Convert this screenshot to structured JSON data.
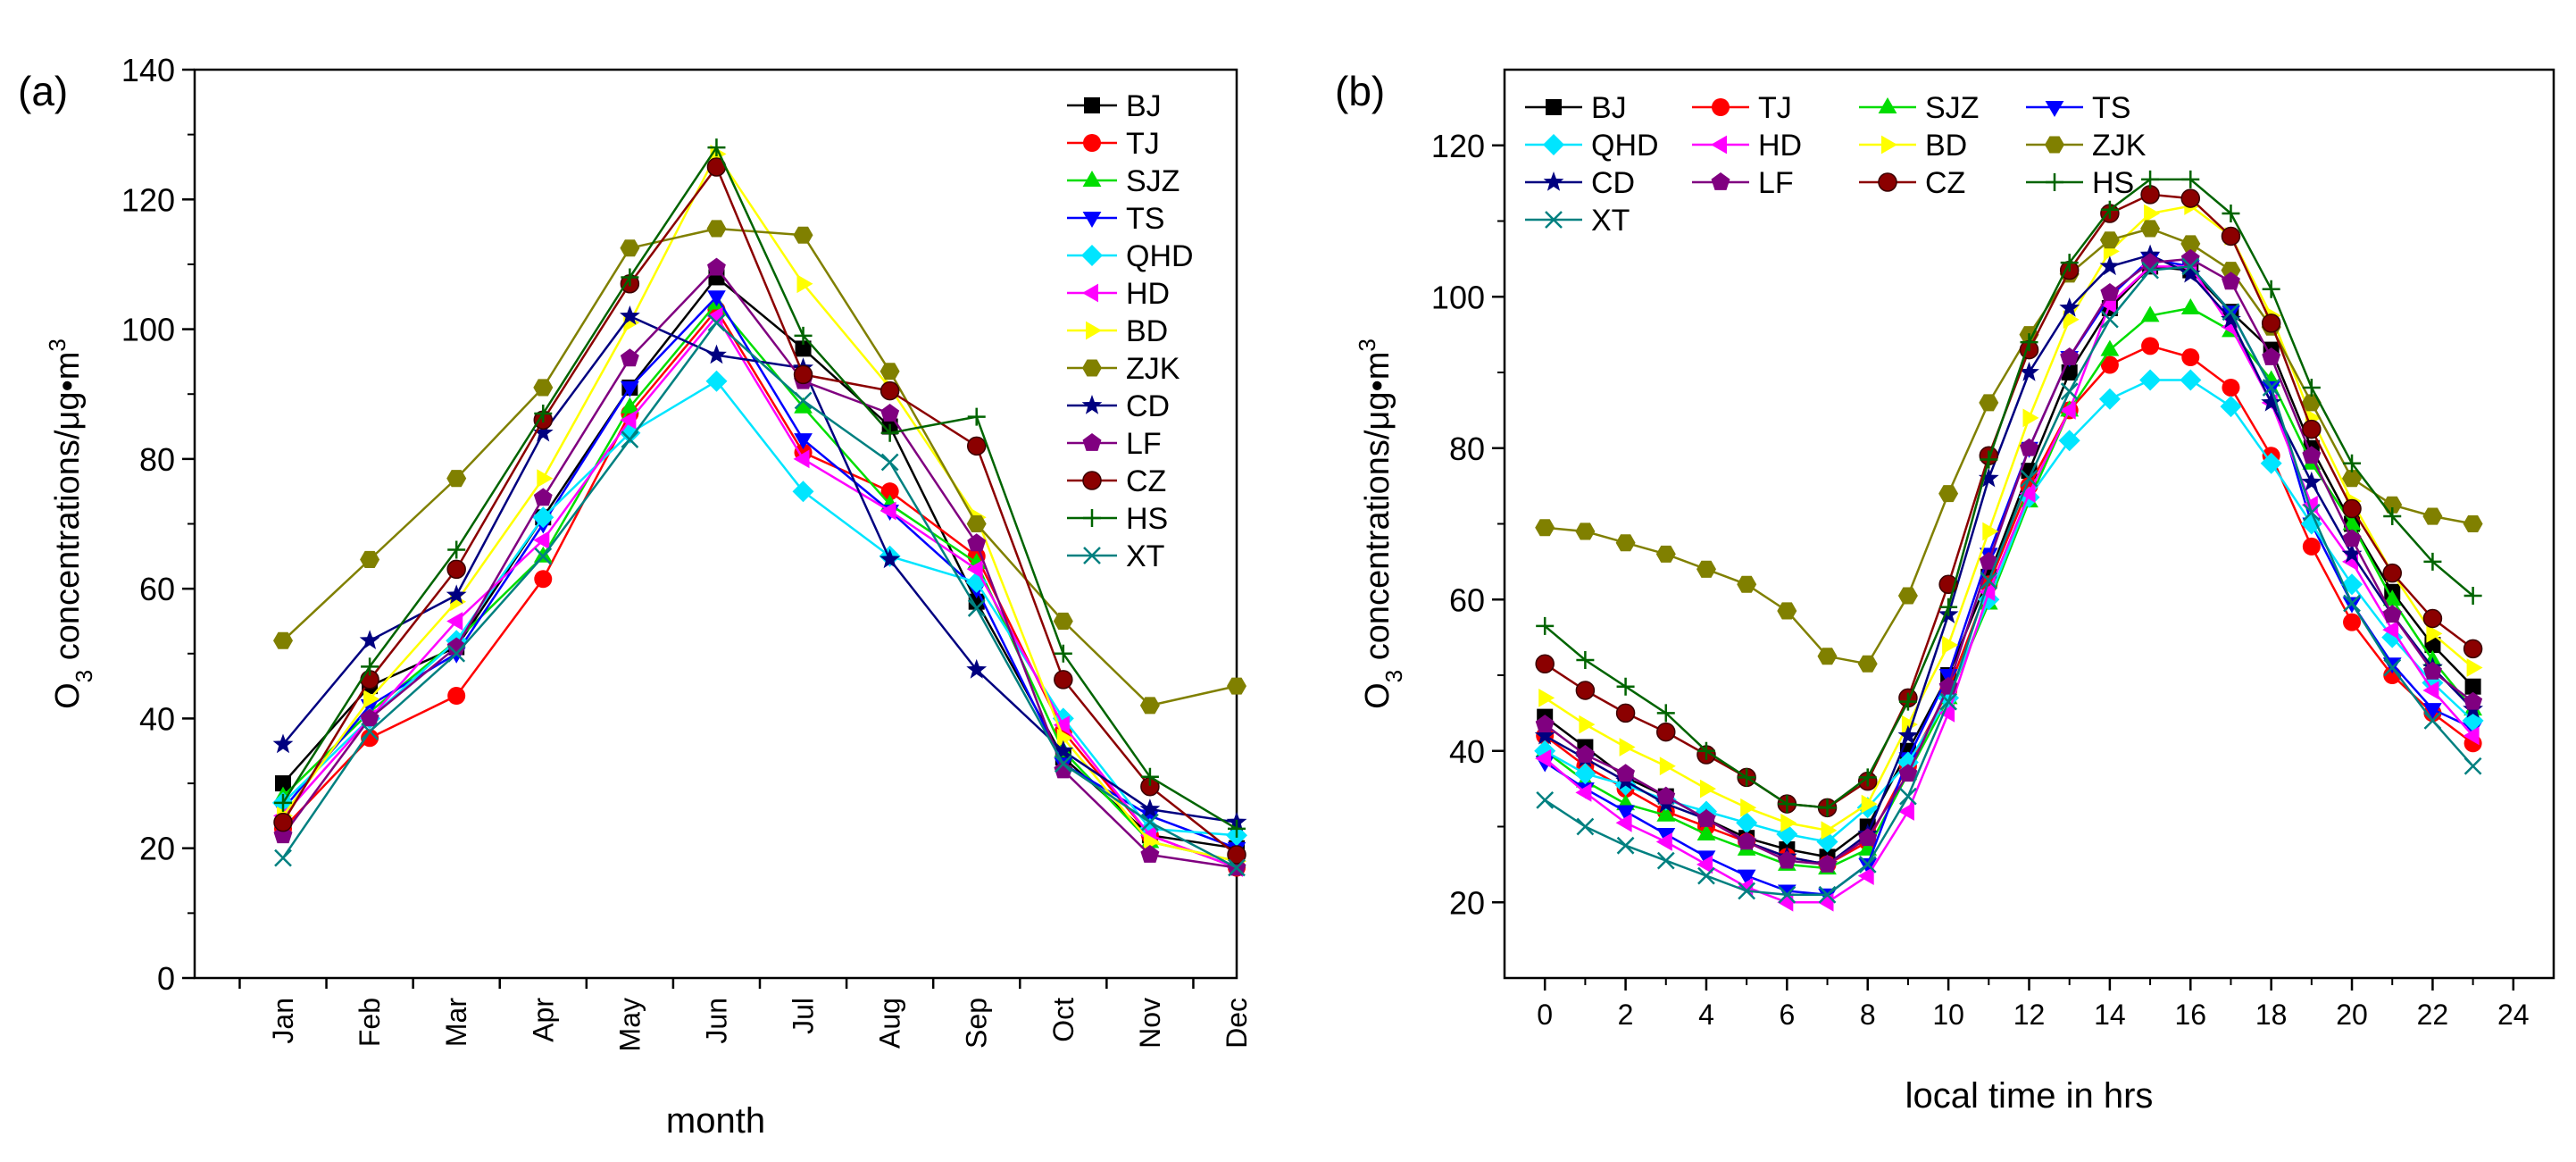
{
  "panel_labels": [
    "(a)",
    "(b)"
  ],
  "chart_data": [
    {
      "type": "line",
      "panel": "(a)",
      "title": "",
      "xlabel": "month",
      "ylabel": "O3 concentrations/μg•m3",
      "ylabel_parts": {
        "O": "O",
        "sub": "3",
        "rest": " concentrations/μg•m",
        "sup": "3"
      },
      "categories": [
        "Jan",
        "Feb",
        "Mar",
        "Apr",
        "May",
        "Jun",
        "Jul",
        "Aug",
        "Sep",
        "Oct",
        "Nov",
        "Dec"
      ],
      "ylim": [
        0,
        140
      ],
      "y_ticks": [
        0,
        20,
        40,
        60,
        80,
        100,
        120,
        140
      ],
      "y_tick_labels": [
        "0",
        "20",
        "40",
        "60",
        "80",
        "100",
        "120",
        "140"
      ],
      "legend_position": "top-right",
      "series": [
        {
          "name": "BJ",
          "color": "#000000",
          "marker": "square",
          "values": [
            30,
            45,
            51,
            71,
            91,
            108,
            97,
            85,
            58,
            34,
            22,
            20
          ]
        },
        {
          "name": "TJ",
          "color": "#ff0000",
          "marker": "circle",
          "values": [
            23,
            37,
            43.5,
            61.5,
            87,
            103,
            81,
            75,
            65,
            38,
            22,
            17
          ]
        },
        {
          "name": "SJZ",
          "color": "#00dd00",
          "marker": "triangle-up",
          "values": [
            28,
            41,
            52,
            65,
            88,
            104,
            88,
            73,
            64,
            35,
            21,
            18
          ]
        },
        {
          "name": "TS",
          "color": "#0000ff",
          "marker": "triangle-down",
          "values": [
            26,
            42,
            50,
            70,
            91,
            105,
            83,
            72,
            60,
            33,
            25,
            20
          ]
        },
        {
          "name": "QHD",
          "color": "#00e5ff",
          "marker": "diamond",
          "values": [
            27,
            40,
            52,
            71,
            84,
            92,
            75,
            65,
            61,
            40,
            23,
            22
          ]
        },
        {
          "name": "HD",
          "color": "#ff00ff",
          "marker": "triangle-left",
          "values": [
            25,
            40,
            55,
            67.5,
            86,
            102,
            80,
            72,
            63,
            39,
            22,
            17
          ]
        },
        {
          "name": "BD",
          "color": "#ffff00",
          "marker": "triangle-right",
          "values": [
            25,
            43,
            58,
            77,
            101,
            127,
            107,
            91,
            71,
            37,
            21,
            18
          ]
        },
        {
          "name": "ZJK",
          "color": "#808000",
          "marker": "hexagon",
          "values": [
            52,
            64.5,
            77,
            91,
            112.5,
            115.5,
            114.5,
            93.5,
            70,
            55,
            42,
            45
          ]
        },
        {
          "name": "CD",
          "color": "#000080",
          "marker": "star",
          "values": [
            36,
            52,
            59,
            84,
            102,
            96,
            94,
            64.5,
            47.5,
            35,
            26,
            24
          ]
        },
        {
          "name": "LF",
          "color": "#800080",
          "marker": "pentagon",
          "values": [
            22,
            40,
            51,
            74,
            95.5,
            109.5,
            92,
            87,
            67,
            32,
            19,
            17
          ]
        },
        {
          "name": "CZ",
          "color": "#8b0000",
          "marker": "sphere",
          "values": [
            24,
            46,
            63,
            86,
            107,
            125,
            93,
            90.5,
            82,
            46,
            29.5,
            19
          ]
        },
        {
          "name": "HS",
          "color": "#006400",
          "marker": "plus",
          "values": [
            27,
            48,
            66,
            87,
            108,
            128,
            99,
            84,
            86.5,
            50,
            31,
            23
          ]
        },
        {
          "name": "XT",
          "color": "#008080",
          "marker": "x",
          "values": [
            18.5,
            38,
            50,
            65,
            83,
            101,
            89,
            79.5,
            57,
            33,
            24,
            17
          ]
        }
      ]
    },
    {
      "type": "line",
      "panel": "(b)",
      "title": "",
      "xlabel": "local time in hrs",
      "ylabel": "O3 concentrations/μg•m3",
      "ylabel_parts": {
        "O": "O",
        "sub": "3",
        "rest": " concentrations/μg•m",
        "sup": "3"
      },
      "x": [
        0,
        1,
        2,
        3,
        4,
        5,
        6,
        7,
        8,
        9,
        10,
        11,
        12,
        13,
        14,
        15,
        16,
        17,
        18,
        19,
        20,
        21,
        22,
        23
      ],
      "xlim": [
        -1,
        25
      ],
      "x_ticks": [
        0,
        2,
        4,
        6,
        8,
        10,
        12,
        14,
        16,
        18,
        20,
        22,
        24
      ],
      "x_tick_labels": [
        "0",
        "2",
        "4",
        "6",
        "8",
        "10",
        "12",
        "14",
        "16",
        "18",
        "20",
        "22",
        "24"
      ],
      "ylim": [
        10,
        130
      ],
      "y_ticks": [
        20,
        40,
        60,
        80,
        100,
        120
      ],
      "y_tick_labels": [
        "20",
        "40",
        "60",
        "80",
        "100",
        "120"
      ],
      "legend_position": "top-left",
      "series": [
        {
          "name": "BJ",
          "color": "#000000",
          "marker": "square",
          "values": [
            44.5,
            40.5,
            36.5,
            34,
            31,
            28.5,
            27,
            26,
            30,
            40,
            50,
            63,
            77,
            90,
            98.5,
            104,
            103.5,
            98,
            93,
            80,
            70,
            61,
            54,
            48.5
          ]
        },
        {
          "name": "TJ",
          "color": "#ff0000",
          "marker": "circle",
          "values": [
            42,
            38,
            35,
            32,
            30,
            28,
            26,
            25,
            28,
            38,
            48,
            62,
            75,
            85,
            91,
            93.5,
            92,
            88,
            79,
            67,
            57,
            50,
            45,
            41
          ]
        },
        {
          "name": "SJZ",
          "color": "#00dd00",
          "marker": "triangle-up",
          "values": [
            40,
            36,
            33,
            31.5,
            29,
            27,
            25,
            24.5,
            27,
            37,
            47,
            59.5,
            73,
            85,
            93,
            97.5,
            98.5,
            95.5,
            89,
            78,
            70,
            60,
            52,
            45.5
          ]
        },
        {
          "name": "TS",
          "color": "#0000ff",
          "marker": "triangle-down",
          "values": [
            38.5,
            35,
            32,
            29,
            26,
            23.5,
            21.5,
            21,
            25,
            39,
            50,
            66,
            80,
            92,
            100,
            105,
            104,
            98,
            88,
            70,
            59.5,
            51.5,
            45.5,
            43
          ]
        },
        {
          "name": "QHD",
          "color": "#00e5ff",
          "marker": "diamond",
          "values": [
            40,
            37,
            35.5,
            33.5,
            32,
            30.5,
            29,
            28,
            32.5,
            38.5,
            47,
            60,
            73.5,
            81,
            86.5,
            89,
            89,
            85.5,
            78,
            70,
            62,
            55,
            49,
            44
          ]
        },
        {
          "name": "HD",
          "color": "#ff00ff",
          "marker": "triangle-left",
          "values": [
            39,
            34.5,
            30.5,
            28,
            25,
            22,
            20,
            20,
            23.5,
            32,
            45,
            61,
            74,
            85,
            99,
            104,
            104,
            96,
            86,
            72.5,
            65,
            56,
            48,
            42
          ]
        },
        {
          "name": "BD",
          "color": "#ffff00",
          "marker": "triangle-right",
          "values": [
            47,
            43.5,
            40.5,
            38,
            35,
            32.5,
            30.5,
            29.5,
            33,
            43.5,
            54,
            69,
            84,
            97,
            106,
            111,
            112,
            108,
            97.5,
            84,
            73,
            63.5,
            55.5,
            51
          ]
        },
        {
          "name": "ZJK",
          "color": "#808000",
          "marker": "hexagon",
          "values": [
            69.5,
            69,
            67.5,
            66,
            64,
            62,
            58.5,
            52.5,
            51.5,
            60.5,
            74,
            86,
            95,
            103,
            107.5,
            109,
            107,
            103.5,
            96,
            86,
            76,
            72.5,
            71,
            70
          ]
        },
        {
          "name": "CD",
          "color": "#000080",
          "marker": "star",
          "values": [
            42,
            39,
            36,
            33,
            31,
            28,
            26,
            25,
            29,
            42,
            58,
            76,
            90,
            98.5,
            104,
            105.5,
            103,
            97,
            86,
            75.5,
            66,
            58,
            51,
            45.5
          ]
        },
        {
          "name": "LF",
          "color": "#800080",
          "marker": "pentagon",
          "values": [
            43.5,
            39.5,
            37,
            34,
            31,
            28,
            25.5,
            25,
            28.5,
            37,
            48.5,
            65,
            80,
            92,
            100.5,
            104.5,
            105,
            102,
            92,
            79,
            68,
            58,
            50.5,
            46.5
          ]
        },
        {
          "name": "CZ",
          "color": "#8b0000",
          "marker": "sphere",
          "values": [
            51.5,
            48,
            45,
            42.5,
            39.5,
            36.5,
            33,
            32.5,
            36,
            47,
            62,
            79,
            93,
            103.5,
            111,
            113.5,
            113,
            108,
            96.5,
            82.5,
            72,
            63.5,
            57.5,
            53.5
          ]
        },
        {
          "name": "HS",
          "color": "#006400",
          "marker": "plus",
          "values": [
            56.5,
            52,
            48.5,
            45,
            40,
            36.5,
            33,
            32.5,
            36.5,
            46.5,
            59,
            78.5,
            94,
            104.5,
            111.5,
            115.5,
            115.5,
            111,
            101,
            88,
            78,
            71,
            65,
            60.5
          ]
        },
        {
          "name": "XT",
          "color": "#008080",
          "marker": "x",
          "values": [
            33.5,
            30,
            27.5,
            25.5,
            23.5,
            21.5,
            21,
            21,
            25,
            34,
            46.5,
            62.5,
            76,
            87.5,
            97,
            103.5,
            104,
            98,
            88,
            71.5,
            59.5,
            51,
            44,
            38
          ]
        }
      ]
    }
  ]
}
